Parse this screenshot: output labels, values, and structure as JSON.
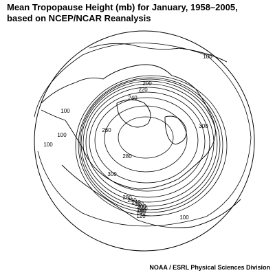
{
  "title": [
    "Mean Tropopause Height (mb) for January, 1958–2005,",
    "based on NCEP/NCAR Reanalysis"
  ],
  "contour_labels": [
    100,
    200,
    220,
    240,
    100,
    260,
    300,
    100,
    100,
    280,
    300,
    280,
    260,
    240,
    220,
    200,
    180,
    160,
    140,
    120,
    100
  ],
  "footer": "NOAA / ESRL Physical Sciences Division"
}
